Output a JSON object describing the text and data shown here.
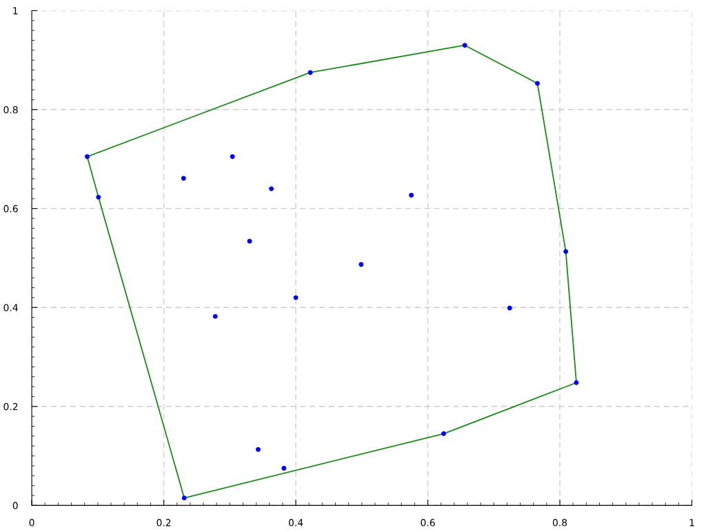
{
  "chart_data": {
    "type": "line",
    "xlim": [
      0,
      1
    ],
    "ylim": [
      0,
      1
    ],
    "xticks": [
      0,
      0.2,
      0.4,
      0.6,
      0.8,
      1
    ],
    "yticks": [
      0,
      0.2,
      0.4,
      0.6,
      0.8,
      1
    ],
    "grid": true,
    "legend": false,
    "series": [
      {
        "type": "scatter",
        "marker": "circle",
        "color": "#0000ff",
        "x": [
          0.084,
          0.101,
          0.231,
          0.624,
          0.825,
          0.809,
          0.766,
          0.656,
          0.422,
          0.23,
          0.304,
          0.363,
          0.575,
          0.33,
          0.499,
          0.4,
          0.278,
          0.724,
          0.343,
          0.382
        ],
        "values": [
          0.705,
          0.623,
          0.015,
          0.145,
          0.248,
          0.513,
          0.853,
          0.93,
          0.875,
          0.661,
          0.705,
          0.64,
          0.627,
          0.534,
          0.487,
          0.42,
          0.382,
          0.399,
          0.113,
          0.075
        ]
      },
      {
        "marker": "none",
        "line_style": "solid",
        "color": "#1a8a1a",
        "x": [
          0.084,
          0.101,
          0.231,
          0.624,
          0.825
        ],
        "values": [
          0.705,
          0.623,
          0.015,
          0.145,
          0.248
        ]
      },
      {
        "marker": "none",
        "line_style": "solid",
        "color": "#1a8a1a",
        "x": [
          0.084,
          0.422,
          0.656,
          0.766,
          0.809,
          0.825
        ],
        "values": [
          0.705,
          0.875,
          0.93,
          0.853,
          0.513,
          0.248
        ]
      }
    ]
  }
}
